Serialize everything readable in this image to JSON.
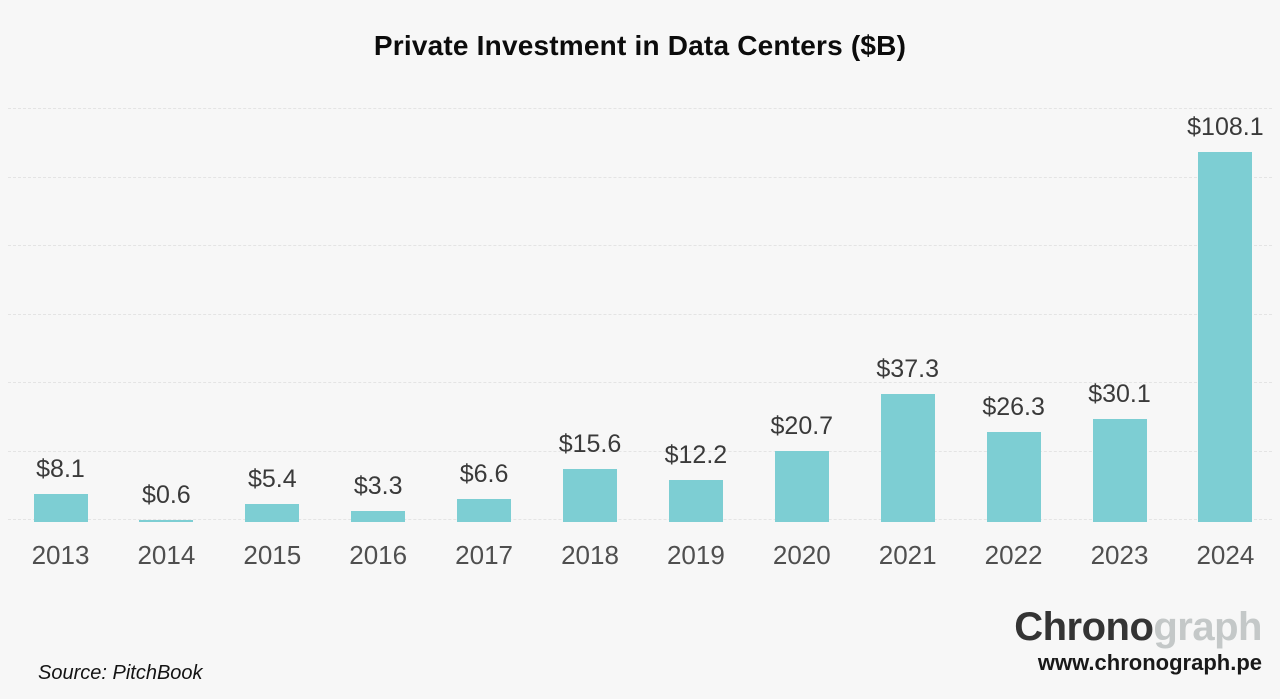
{
  "title": "Private Investment in Data Centers ($B)",
  "source": "Source: PitchBook",
  "branding": {
    "logo_dark": "Chrono",
    "logo_light": "graph",
    "url": "www.chronograph.pe"
  },
  "colors": {
    "background": "#f7f7f7",
    "bar": "#7dced3",
    "gridline": "#e4e4e4",
    "value_label": "#3a3a3a",
    "year_label": "#4f4f4f",
    "logo_dark": "#343434",
    "logo_light": "#c4c8c8"
  },
  "chart_data": {
    "type": "bar",
    "title": "Private Investment in Data Centers ($B)",
    "categories": [
      "2013",
      "2014",
      "2015",
      "2016",
      "2017",
      "2018",
      "2019",
      "2020",
      "2021",
      "2022",
      "2023",
      "2024"
    ],
    "values": [
      8.1,
      0.6,
      5.4,
      3.3,
      6.6,
      15.6,
      12.2,
      20.7,
      37.3,
      26.3,
      30.1,
      108.1
    ],
    "value_labels": [
      "$8.1",
      "$0.6",
      "$5.4",
      "$3.3",
      "$6.6",
      "$15.6",
      "$12.2",
      "$20.7",
      "$37.3",
      "$26.3",
      "$30.1",
      "$108.1"
    ],
    "xlabel": "",
    "ylabel": "",
    "ylim": [
      0,
      120
    ],
    "gridline_step": 20,
    "grid": true,
    "legend": false
  }
}
